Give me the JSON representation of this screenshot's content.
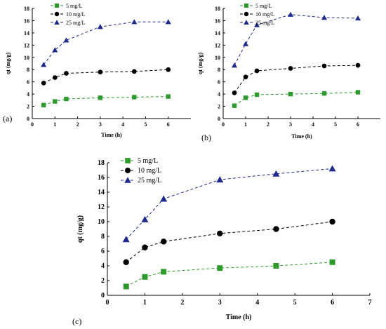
{
  "colors": {
    "5 mg/L": "#2e9a2e",
    "10 mg/L": "#000000",
    "25 mg/L": "#1f2a8c"
  },
  "chart_data": [
    {
      "panel_label": "(a)",
      "type": "line",
      "xlabel": "Time (h)",
      "ylabel": "qt (mg/g)",
      "xlim": [
        0,
        7
      ],
      "ylim": [
        0,
        18
      ],
      "xticks": [
        0,
        1,
        2,
        3,
        4,
        5,
        6
      ],
      "yticks": [
        0,
        2,
        4,
        6,
        8,
        10,
        12,
        14,
        16,
        18
      ],
      "legend_position": "top-left",
      "line_style": "dashed",
      "series": [
        {
          "name": "5 mg/L",
          "marker": "square",
          "x": [
            0.5,
            1,
            1.5,
            3,
            4.5,
            6
          ],
          "values": [
            2.2,
            2.8,
            3.2,
            3.4,
            3.5,
            3.6
          ]
        },
        {
          "name": "10 mg/L",
          "marker": "circle",
          "x": [
            0.5,
            1,
            1.5,
            3,
            4.5,
            6
          ],
          "values": [
            5.8,
            6.7,
            7.4,
            7.6,
            7.7,
            8.0
          ]
        },
        {
          "name": "25 mg/L",
          "marker": "triangle",
          "x": [
            0.5,
            1,
            1.5,
            3,
            4.5,
            6
          ],
          "values": [
            8.8,
            11.2,
            12.8,
            15.0,
            15.8,
            15.8
          ]
        }
      ]
    },
    {
      "panel_label": "(b)",
      "type": "line",
      "xlabel": "Time (h)",
      "ylabel": "qt (mg/g)",
      "xlim": [
        0,
        7
      ],
      "ylim": [
        0,
        18
      ],
      "xticks": [
        0,
        1,
        2,
        3,
        4,
        5,
        6
      ],
      "yticks": [
        0,
        2,
        4,
        6,
        8,
        10,
        12,
        14,
        16,
        18
      ],
      "legend_position": "top-left",
      "line_style": "dashed",
      "series": [
        {
          "name": "5 mg/L",
          "marker": "square",
          "x": [
            0.5,
            1,
            1.5,
            3,
            4.5,
            6
          ],
          "values": [
            2.1,
            3.4,
            3.9,
            4.0,
            4.1,
            4.3
          ]
        },
        {
          "name": "10 mg/L",
          "marker": "circle",
          "x": [
            0.5,
            1,
            1.5,
            3,
            4.5,
            6
          ],
          "values": [
            4.2,
            6.8,
            7.8,
            8.2,
            8.6,
            8.7
          ]
        },
        {
          "name": "25 mg/L",
          "marker": "triangle",
          "x": [
            0.5,
            1,
            1.5,
            3,
            4.5,
            6
          ],
          "values": [
            8.7,
            12.2,
            15.3,
            17.0,
            16.5,
            16.4
          ]
        }
      ]
    },
    {
      "panel_label": "(c)",
      "type": "line",
      "xlabel": "Time (h)",
      "ylabel": "qt (mg/g)",
      "xlim": [
        0,
        7
      ],
      "ylim": [
        0,
        18
      ],
      "xticks": [
        0,
        1,
        2,
        3,
        4,
        5,
        6,
        7
      ],
      "yticks": [
        0,
        2,
        4,
        6,
        8,
        10,
        12,
        14,
        16,
        18
      ],
      "legend_position": "top-left",
      "line_style": "dashed",
      "series": [
        {
          "name": "5 mg/L",
          "marker": "square",
          "x": [
            0.5,
            1,
            1.5,
            3,
            4.5,
            6
          ],
          "values": [
            1.2,
            2.5,
            3.2,
            3.7,
            4.0,
            4.5
          ]
        },
        {
          "name": "10 mg/L",
          "marker": "circle",
          "x": [
            0.5,
            1,
            1.5,
            3,
            4.5,
            6
          ],
          "values": [
            4.5,
            6.5,
            7.3,
            8.4,
            9.0,
            10.0
          ]
        },
        {
          "name": "25 mg/L",
          "marker": "triangle",
          "x": [
            0.5,
            1,
            1.5,
            3,
            4.5,
            6
          ],
          "values": [
            7.6,
            10.3,
            13.1,
            15.7,
            16.5,
            17.2
          ]
        }
      ]
    }
  ]
}
